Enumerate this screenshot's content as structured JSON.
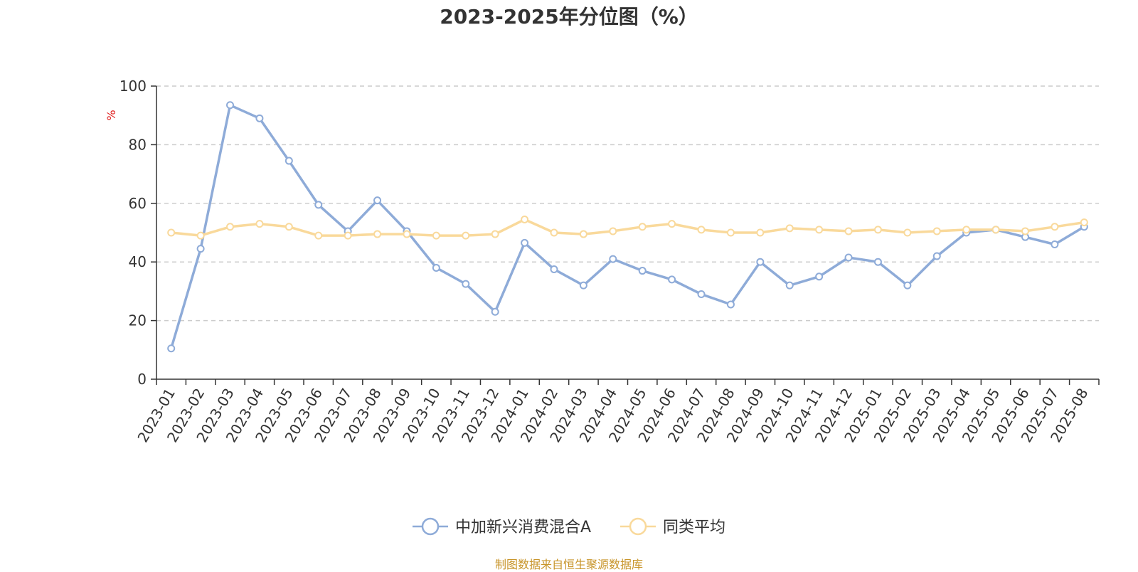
{
  "chart_data": {
    "type": "line",
    "title": "2023-2025年分位图（%）",
    "ylabel": "%",
    "xlabel": "",
    "ylim": [
      0,
      100
    ],
    "yticks": [
      0,
      20,
      40,
      60,
      80,
      100
    ],
    "grid": true,
    "legend_position": "bottom",
    "categories": [
      "2023-01",
      "2023-02",
      "2023-03",
      "2023-04",
      "2023-05",
      "2023-06",
      "2023-07",
      "2023-08",
      "2023-09",
      "2023-10",
      "2023-11",
      "2023-12",
      "2024-01",
      "2024-02",
      "2024-03",
      "2024-04",
      "2024-05",
      "2024-06",
      "2024-07",
      "2024-08",
      "2024-09",
      "2024-10",
      "2024-11",
      "2024-12",
      "2025-01",
      "2025-02",
      "2025-03",
      "2025-04",
      "2025-05",
      "2025-06",
      "2025-07",
      "2025-08"
    ],
    "series": [
      {
        "name": "中加新兴消费混合A",
        "color": "#8eabd8",
        "values": [
          10.5,
          44.5,
          93.5,
          89,
          74.5,
          59.5,
          50.5,
          61,
          50.5,
          38,
          32.5,
          23,
          46.5,
          37.5,
          32,
          41,
          37,
          34,
          29,
          25.5,
          40,
          32,
          35,
          41.5,
          40,
          32,
          42,
          50,
          51,
          48.5,
          46,
          52
        ]
      },
      {
        "name": "同类平均",
        "color": "#f9d99b",
        "values": [
          50,
          49,
          52,
          53,
          52,
          49,
          49,
          49.5,
          49.5,
          49,
          49,
          49.5,
          54.5,
          50,
          49.5,
          50.5,
          52,
          53,
          51,
          50,
          50,
          51.5,
          51,
          50.5,
          51,
          50,
          50.5,
          51,
          51,
          50.5,
          52,
          53.5
        ]
      }
    ],
    "source": "制图数据来自恒生聚源数据库"
  }
}
